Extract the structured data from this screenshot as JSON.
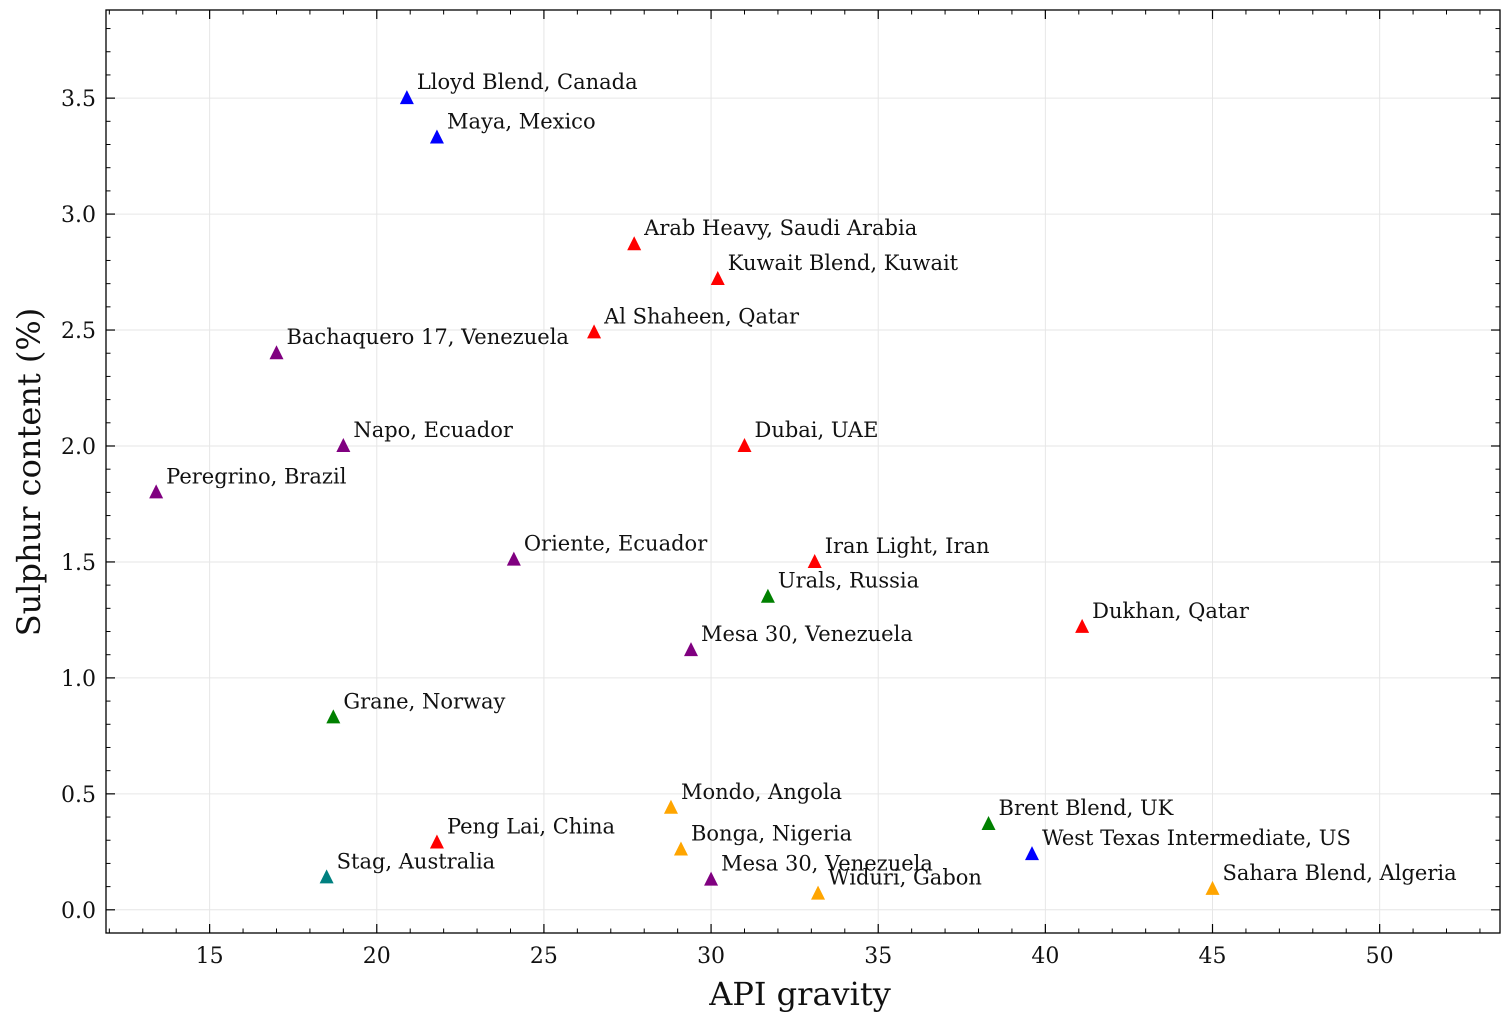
{
  "chart_data": {
    "type": "scatter",
    "xlabel": "API gravity",
    "ylabel": "Sulphur content (%)",
    "xlim": [
      11.9,
      53.6
    ],
    "ylim": [
      -0.1,
      3.88
    ],
    "x_ticks": [
      15,
      20,
      25,
      30,
      35,
      40,
      45,
      50
    ],
    "y_ticks": [
      0.0,
      0.5,
      1.0,
      1.5,
      2.0,
      2.5,
      3.0,
      3.5
    ],
    "x_tick_labels": [
      "15",
      "20",
      "25",
      "30",
      "35",
      "40",
      "45",
      "50"
    ],
    "y_tick_labels": [
      "0.0",
      "0.5",
      "1.0",
      "1.5",
      "2.0",
      "2.5",
      "3.0",
      "3.5"
    ],
    "grid": true,
    "marker": "triangle",
    "points": [
      {
        "label": "Lloyd Blend, Canada",
        "x": 20.9,
        "y": 3.5,
        "color": "#0000ff"
      },
      {
        "label": "Maya, Mexico",
        "x": 21.8,
        "y": 3.33,
        "color": "#0000ff"
      },
      {
        "label": "Arab Heavy, Saudi Arabia",
        "x": 27.7,
        "y": 2.87,
        "color": "#ff0000"
      },
      {
        "label": "Kuwait Blend, Kuwait",
        "x": 30.2,
        "y": 2.72,
        "color": "#ff0000"
      },
      {
        "label": "Al Shaheen, Qatar",
        "x": 26.5,
        "y": 2.49,
        "color": "#ff0000"
      },
      {
        "label": "Bachaquero 17, Venezuela",
        "x": 17.0,
        "y": 2.4,
        "color": "#800080"
      },
      {
        "label": "Napo, Ecuador",
        "x": 19.0,
        "y": 2.0,
        "color": "#800080"
      },
      {
        "label": "Dubai, UAE",
        "x": 31.0,
        "y": 2.0,
        "color": "#ff0000"
      },
      {
        "label": "Peregrino, Brazil",
        "x": 13.4,
        "y": 1.8,
        "color": "#800080"
      },
      {
        "label": "Oriente, Ecuador",
        "x": 24.1,
        "y": 1.51,
        "color": "#800080"
      },
      {
        "label": "Iran Light, Iran",
        "x": 33.1,
        "y": 1.5,
        "color": "#ff0000"
      },
      {
        "label": "Urals, Russia",
        "x": 31.7,
        "y": 1.35,
        "color": "#008000"
      },
      {
        "label": "Dukhan, Qatar",
        "x": 41.1,
        "y": 1.22,
        "color": "#ff0000"
      },
      {
        "label": "Mesa 30, Venezuela",
        "x": 29.4,
        "y": 1.12,
        "color": "#800080"
      },
      {
        "label": "Grane, Norway",
        "x": 18.7,
        "y": 0.83,
        "color": "#008000"
      },
      {
        "label": "Mondo, Angola",
        "x": 28.8,
        "y": 0.44,
        "color": "#ffa500"
      },
      {
        "label": "Brent Blend, UK",
        "x": 38.3,
        "y": 0.37,
        "color": "#008000"
      },
      {
        "label": "Peng Lai, China",
        "x": 21.8,
        "y": 0.29,
        "color": "#ff0000"
      },
      {
        "label": "Bonga, Nigeria",
        "x": 29.1,
        "y": 0.26,
        "color": "#ffa500"
      },
      {
        "label": "West Texas Intermediate, US",
        "x": 39.6,
        "y": 0.24,
        "color": "#0000ff"
      },
      {
        "label": "Stag, Australia",
        "x": 18.5,
        "y": 0.14,
        "color": "#008080"
      },
      {
        "label": "Mesa 30, Venezuela",
        "x": 30.0,
        "y": 0.13,
        "color": "#800080"
      },
      {
        "label": "Widuri, Gabon",
        "x": 33.2,
        "y": 0.07,
        "color": "#ffa500"
      },
      {
        "label": "Sahara Blend, Algeria",
        "x": 45.0,
        "y": 0.09,
        "color": "#ffa500"
      }
    ]
  }
}
